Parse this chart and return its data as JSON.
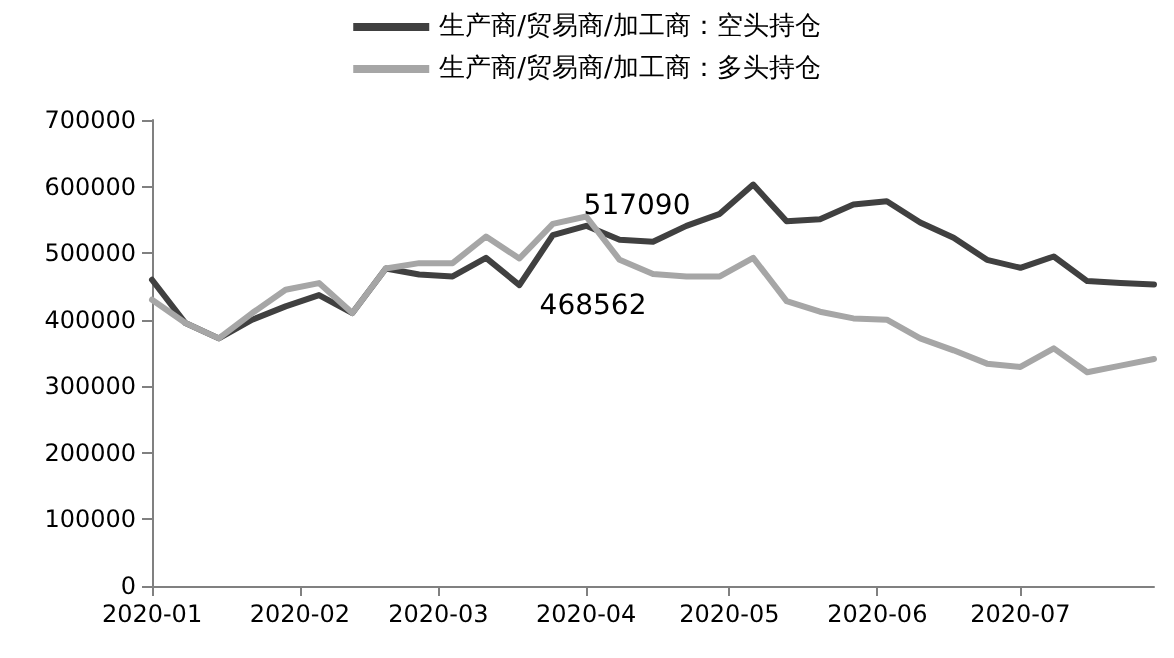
{
  "chart_data": {
    "type": "line",
    "x": [
      "2020-01-01",
      "2020-01-08",
      "2020-01-15",
      "2020-01-22",
      "2020-01-29",
      "2020-02-05",
      "2020-02-12",
      "2020-02-19",
      "2020-02-26",
      "2020-03-04",
      "2020-03-11",
      "2020-03-18",
      "2020-03-25",
      "2020-04-01",
      "2020-04-08",
      "2020-04-15",
      "2020-04-22",
      "2020-04-29",
      "2020-05-06",
      "2020-05-13",
      "2020-05-20",
      "2020-05-27",
      "2020-06-03",
      "2020-06-10",
      "2020-06-17",
      "2020-06-24",
      "2020-07-01",
      "2020-07-08",
      "2020-07-15",
      "2020-07-22",
      "2020-07-29"
    ],
    "series": [
      {
        "name": "生产商/贸易商/加工商：空头持仓",
        "color": "#404040",
        "values": [
          460000,
          395000,
          372000,
          400000,
          420000,
          437000,
          410000,
          477000,
          468000,
          465000,
          493000,
          452000,
          527000,
          541000,
          520000,
          517090,
          541000,
          559000,
          603000,
          548000,
          551000,
          573000,
          578000,
          546000,
          523000,
          490000,
          478000,
          495000,
          458000,
          455000,
          453000
        ],
        "value_labels": [
          null,
          null,
          null,
          null,
          null,
          null,
          null,
          null,
          null,
          null,
          null,
          null,
          null,
          null,
          null,
          "517090",
          null,
          null,
          null,
          null,
          null,
          null,
          null,
          null,
          null,
          null,
          null,
          null,
          null,
          null,
          null
        ]
      },
      {
        "name": "生产商/贸易商/加工商：多头持仓",
        "color": "#a6a6a6",
        "values": [
          430000,
          395000,
          372000,
          410000,
          445000,
          455000,
          410000,
          477000,
          485000,
          485000,
          525000,
          492000,
          544000,
          555000,
          490000,
          468562,
          465000,
          465000,
          493000,
          428000,
          412000,
          402000,
          400000,
          372000,
          354000,
          334000,
          329000,
          357000,
          321000,
          331000,
          341000
        ],
        "value_labels": [
          null,
          null,
          null,
          null,
          null,
          null,
          null,
          null,
          null,
          null,
          null,
          null,
          null,
          null,
          null,
          "468562",
          null,
          null,
          null,
          null,
          null,
          null,
          null,
          null,
          null,
          null,
          null,
          null,
          null,
          null,
          null
        ]
      }
    ],
    "xlim": [
      "2020-01-01",
      "2020-07-29"
    ],
    "xticks": [
      {
        "value": "2020-01-01",
        "label": "2020-01"
      },
      {
        "value": "2020-02-01",
        "label": "2020-02"
      },
      {
        "value": "2020-03-01",
        "label": "2020-03"
      },
      {
        "value": "2020-04-01",
        "label": "2020-04"
      },
      {
        "value": "2020-05-01",
        "label": "2020-05"
      },
      {
        "value": "2020-06-01",
        "label": "2020-06"
      },
      {
        "value": "2020-07-01",
        "label": "2020-07"
      }
    ],
    "ylim": [
      0,
      700000
    ],
    "yticks": [
      0,
      100000,
      200000,
      300000,
      400000,
      500000,
      600000,
      700000
    ],
    "grid": false,
    "legend": "top",
    "marker": "none",
    "line_style": "solid"
  }
}
